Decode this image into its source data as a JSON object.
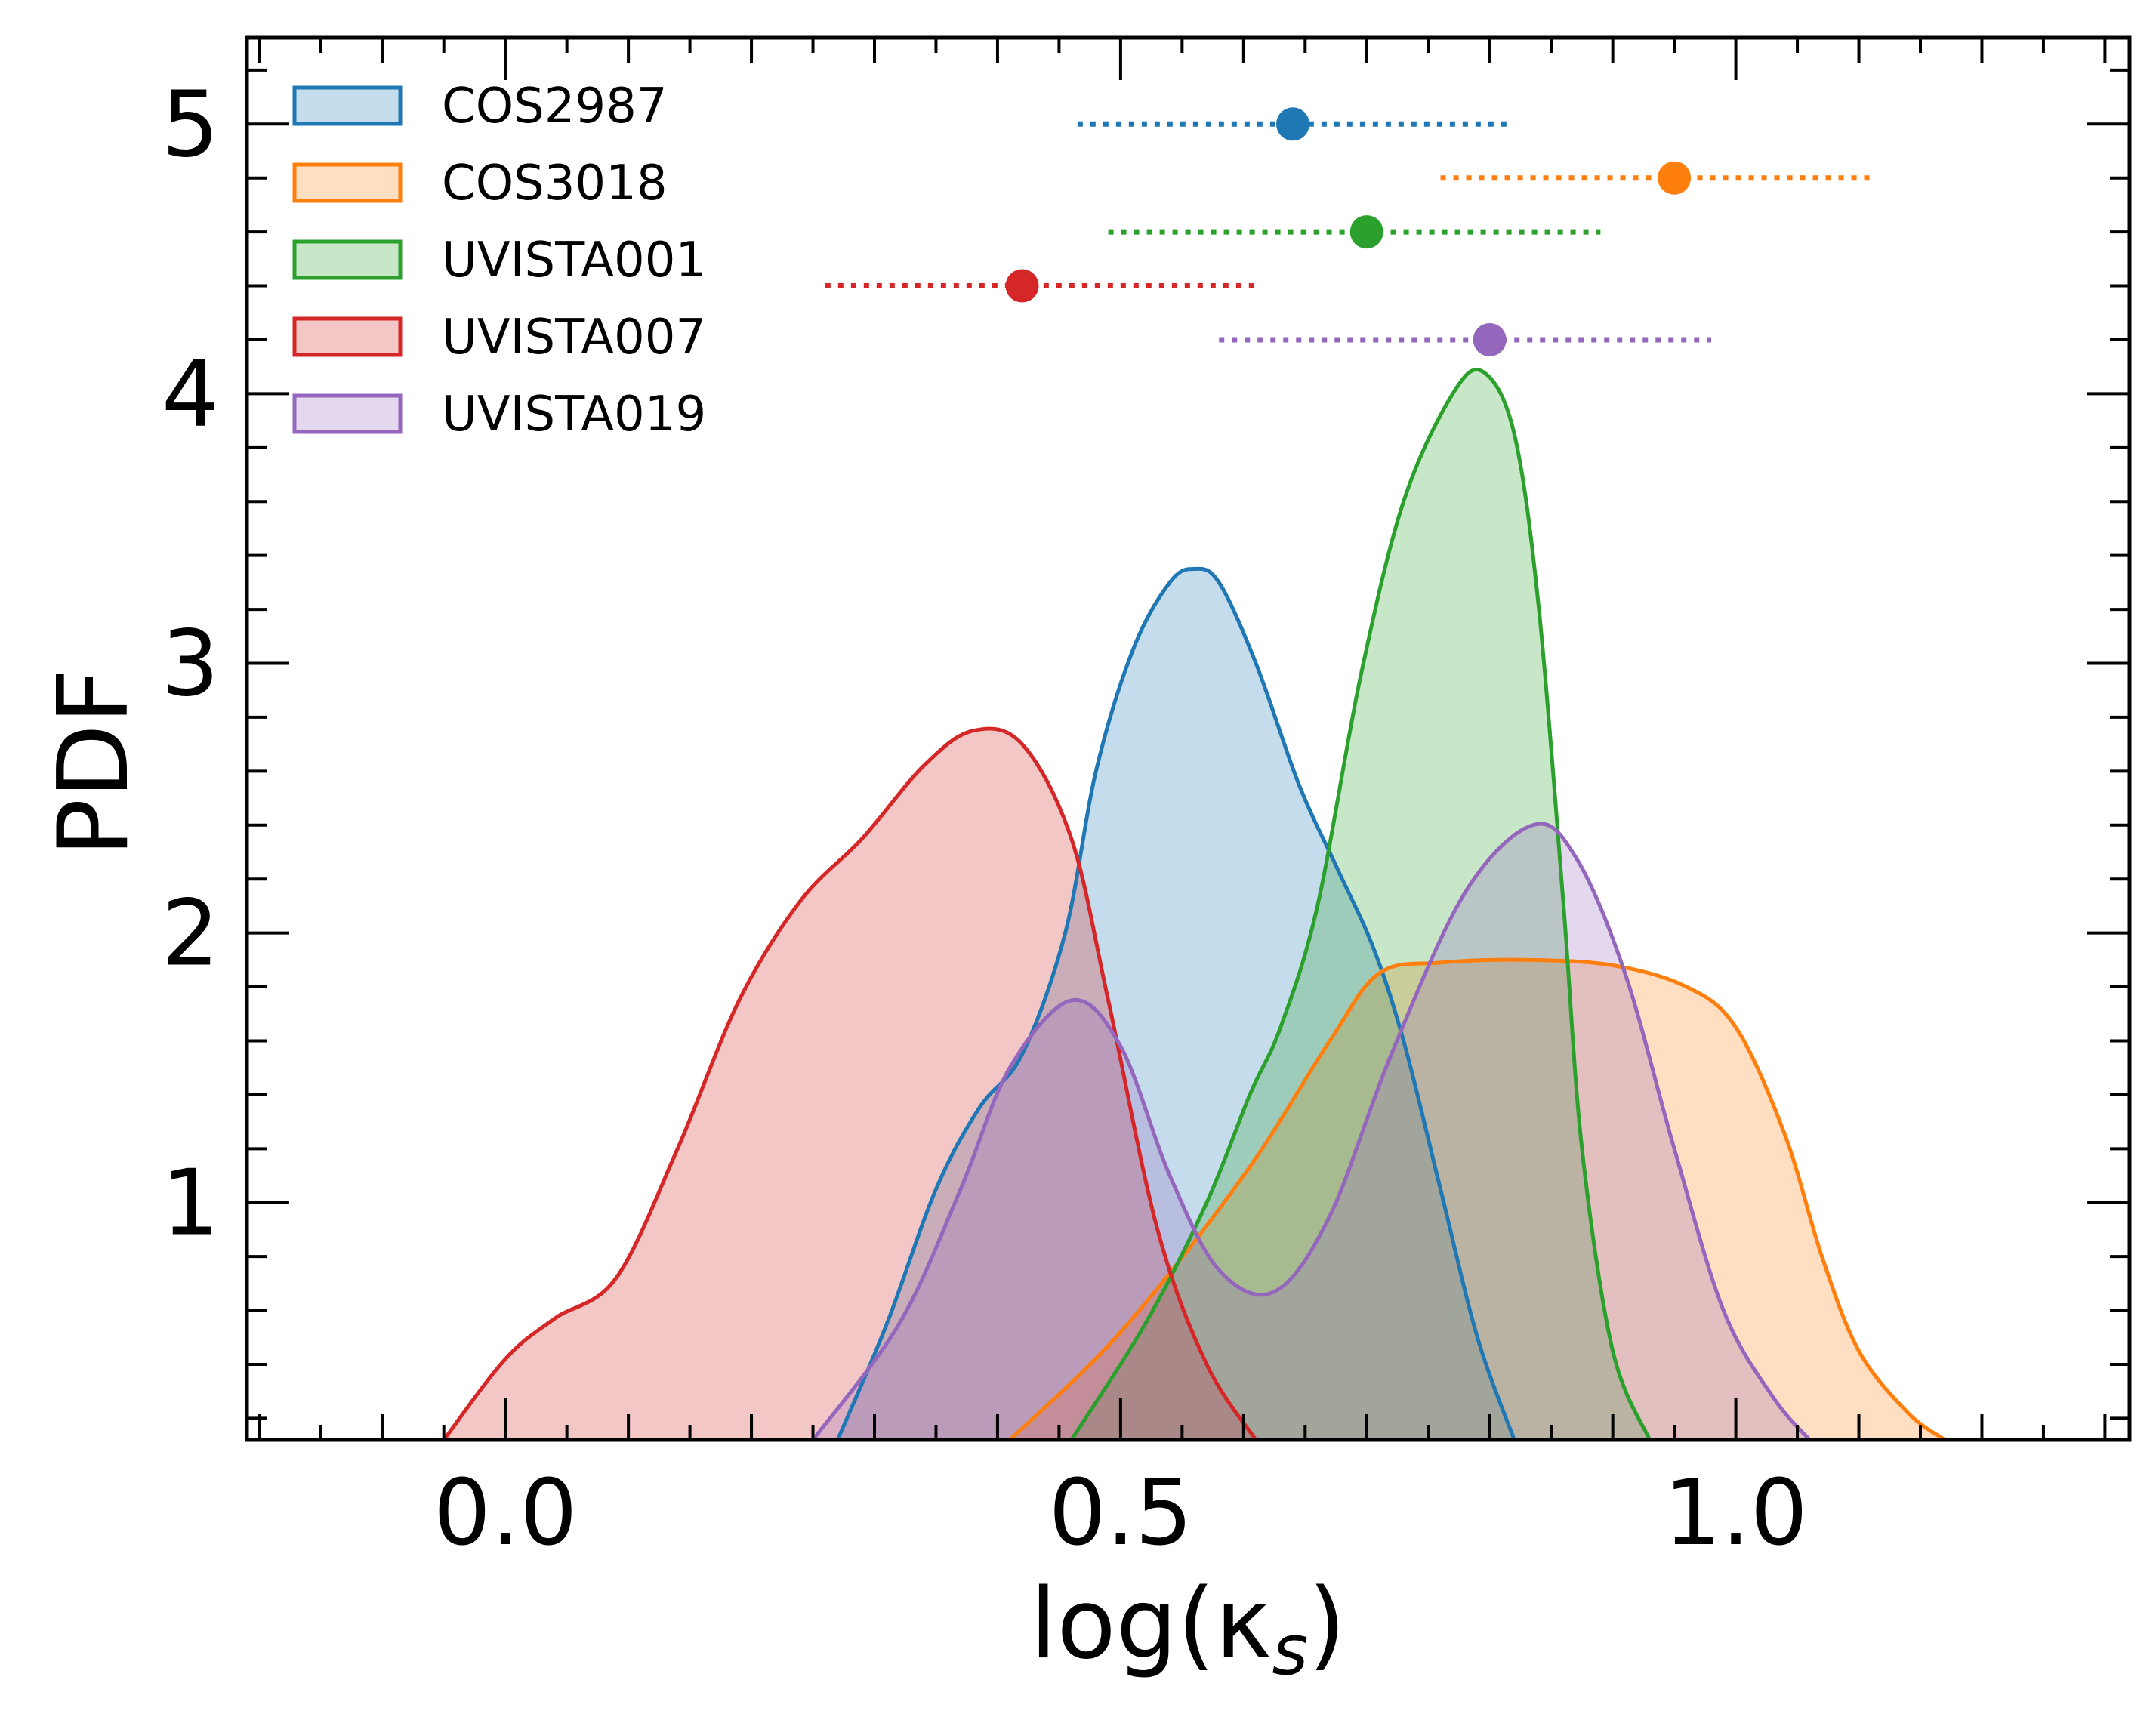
{
  "chart_data": {
    "type": "area",
    "xlabel": "log(κ",
    "xlabel_sub": "s",
    "xlabel_close": ")",
    "ylabel": "PDF",
    "xlim": [
      -0.21,
      1.32
    ],
    "ylim": [
      0.12,
      5.32
    ],
    "xticks_major": [
      0.0,
      0.5,
      1.0
    ],
    "xtick_labels": [
      "0.0",
      "0.5",
      "1.0"
    ],
    "yticks_major": [
      1,
      2,
      3,
      4,
      5
    ],
    "ytick_labels": [
      "1",
      "2",
      "3",
      "4",
      "5"
    ],
    "legend_position": "top-left",
    "series": [
      {
        "name": "COS2987",
        "color": "#1f77b4",
        "fill": "#c6dbec",
        "density": [
          [
            0.27,
            0.12
          ],
          [
            0.31,
            0.55
          ],
          [
            0.35,
            1.05
          ],
          [
            0.385,
            1.35
          ],
          [
            0.42,
            1.55
          ],
          [
            0.455,
            2.0
          ],
          [
            0.48,
            2.6
          ],
          [
            0.51,
            3.05
          ],
          [
            0.54,
            3.3
          ],
          [
            0.56,
            3.35
          ],
          [
            0.58,
            3.3
          ],
          [
            0.61,
            3.0
          ],
          [
            0.645,
            2.55
          ],
          [
            0.675,
            2.25
          ],
          [
            0.705,
            1.95
          ],
          [
            0.73,
            1.6
          ],
          [
            0.76,
            1.05
          ],
          [
            0.79,
            0.5
          ],
          [
            0.82,
            0.12
          ]
        ],
        "point": {
          "x": 0.64,
          "y": 5.0,
          "lo": 0.465,
          "hi": 0.815
        }
      },
      {
        "name": "COS3018",
        "color": "#ff7f0e",
        "fill": "#fedcba",
        "density": [
          [
            0.41,
            0.12
          ],
          [
            0.5,
            0.52
          ],
          [
            0.6,
            1.1
          ],
          [
            0.67,
            1.6
          ],
          [
            0.71,
            1.85
          ],
          [
            0.76,
            1.89
          ],
          [
            0.83,
            1.9
          ],
          [
            0.9,
            1.88
          ],
          [
            0.96,
            1.8
          ],
          [
            1.0,
            1.65
          ],
          [
            1.04,
            1.25
          ],
          [
            1.07,
            0.8
          ],
          [
            1.1,
            0.45
          ],
          [
            1.14,
            0.22
          ],
          [
            1.17,
            0.12
          ]
        ],
        "point": {
          "x": 0.95,
          "y": 4.8,
          "lo": 0.76,
          "hi": 1.11
        }
      },
      {
        "name": "UVISTA001",
        "color": "#2ca02c",
        "fill": "#c9e6c9",
        "density": [
          [
            0.46,
            0.12
          ],
          [
            0.52,
            0.55
          ],
          [
            0.57,
            1.0
          ],
          [
            0.605,
            1.4
          ],
          [
            0.63,
            1.65
          ],
          [
            0.66,
            2.1
          ],
          [
            0.695,
            2.95
          ],
          [
            0.73,
            3.6
          ],
          [
            0.77,
            4.0
          ],
          [
            0.795,
            4.08
          ],
          [
            0.82,
            3.85
          ],
          [
            0.84,
            3.2
          ],
          [
            0.86,
            2.1
          ],
          [
            0.875,
            1.2
          ],
          [
            0.9,
            0.45
          ],
          [
            0.93,
            0.12
          ]
        ],
        "point": {
          "x": 0.7,
          "y": 4.6,
          "lo": 0.49,
          "hi": 0.89
        }
      },
      {
        "name": "UVISTA007",
        "color": "#d62728",
        "fill": "#f4c4c6",
        "density": [
          [
            -0.05,
            0.12
          ],
          [
            0.0,
            0.42
          ],
          [
            0.04,
            0.57
          ],
          [
            0.09,
            0.72
          ],
          [
            0.14,
            1.2
          ],
          [
            0.19,
            1.75
          ],
          [
            0.24,
            2.12
          ],
          [
            0.29,
            2.35
          ],
          [
            0.34,
            2.62
          ],
          [
            0.38,
            2.75
          ],
          [
            0.42,
            2.7
          ],
          [
            0.46,
            2.35
          ],
          [
            0.49,
            1.75
          ],
          [
            0.53,
            0.9
          ],
          [
            0.57,
            0.4
          ],
          [
            0.61,
            0.12
          ]
        ],
        "point": {
          "x": 0.42,
          "y": 4.4,
          "lo": 0.26,
          "hi": 0.61
        }
      },
      {
        "name": "UVISTA019",
        "color": "#9467bd",
        "fill": "#e2d5ee",
        "density": [
          [
            0.25,
            0.12
          ],
          [
            0.32,
            0.55
          ],
          [
            0.37,
            1.05
          ],
          [
            0.41,
            1.5
          ],
          [
            0.46,
            1.75
          ],
          [
            0.5,
            1.58
          ],
          [
            0.54,
            1.1
          ],
          [
            0.58,
            0.75
          ],
          [
            0.625,
            0.67
          ],
          [
            0.67,
            0.95
          ],
          [
            0.72,
            1.55
          ],
          [
            0.78,
            2.15
          ],
          [
            0.835,
            2.4
          ],
          [
            0.87,
            2.28
          ],
          [
            0.91,
            1.85
          ],
          [
            0.95,
            1.2
          ],
          [
            0.99,
            0.6
          ],
          [
            1.03,
            0.28
          ],
          [
            1.06,
            0.12
          ]
        ],
        "point": {
          "x": 0.8,
          "y": 4.2,
          "lo": 0.58,
          "hi": 0.98
        }
      }
    ]
  }
}
